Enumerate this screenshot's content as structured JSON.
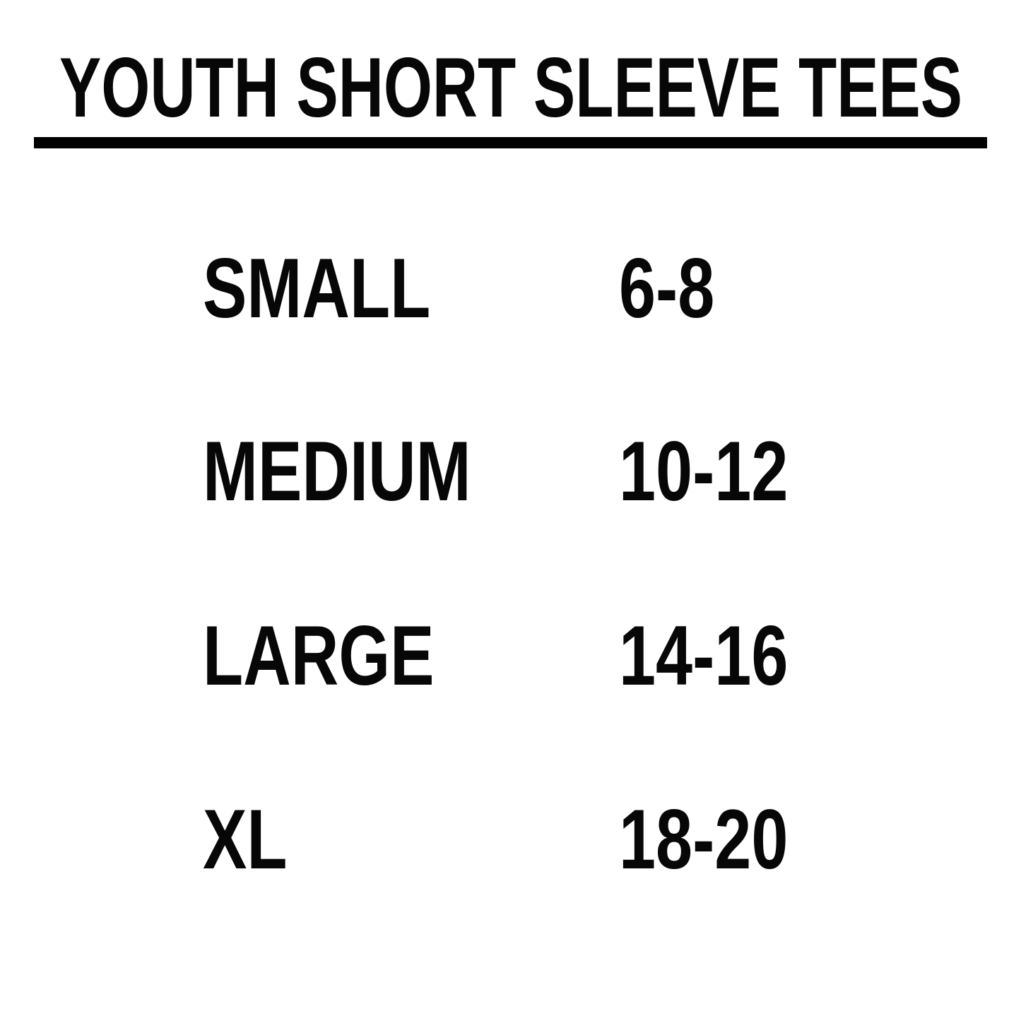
{
  "title": {
    "text": "YOUTH SHORT SLEEVE TEES"
  },
  "colors": {
    "background": "#ffffff",
    "text": "#070707",
    "divider": "#000000"
  },
  "size_table": {
    "rows": [
      {
        "size": "SMALL",
        "range": "6-8"
      },
      {
        "size": "MEDIUM",
        "range": "10-12"
      },
      {
        "size": "LARGE",
        "range": "14-16"
      },
      {
        "size": "XL",
        "range": "18-20"
      }
    ]
  },
  "chart_data": {
    "type": "table",
    "title": "YOUTH SHORT SLEEVE TEES",
    "rows": [
      [
        "SMALL",
        "6-8"
      ],
      [
        "MEDIUM",
        "10-12"
      ],
      [
        "LARGE",
        "14-16"
      ],
      [
        "XL",
        "18-20"
      ]
    ]
  }
}
